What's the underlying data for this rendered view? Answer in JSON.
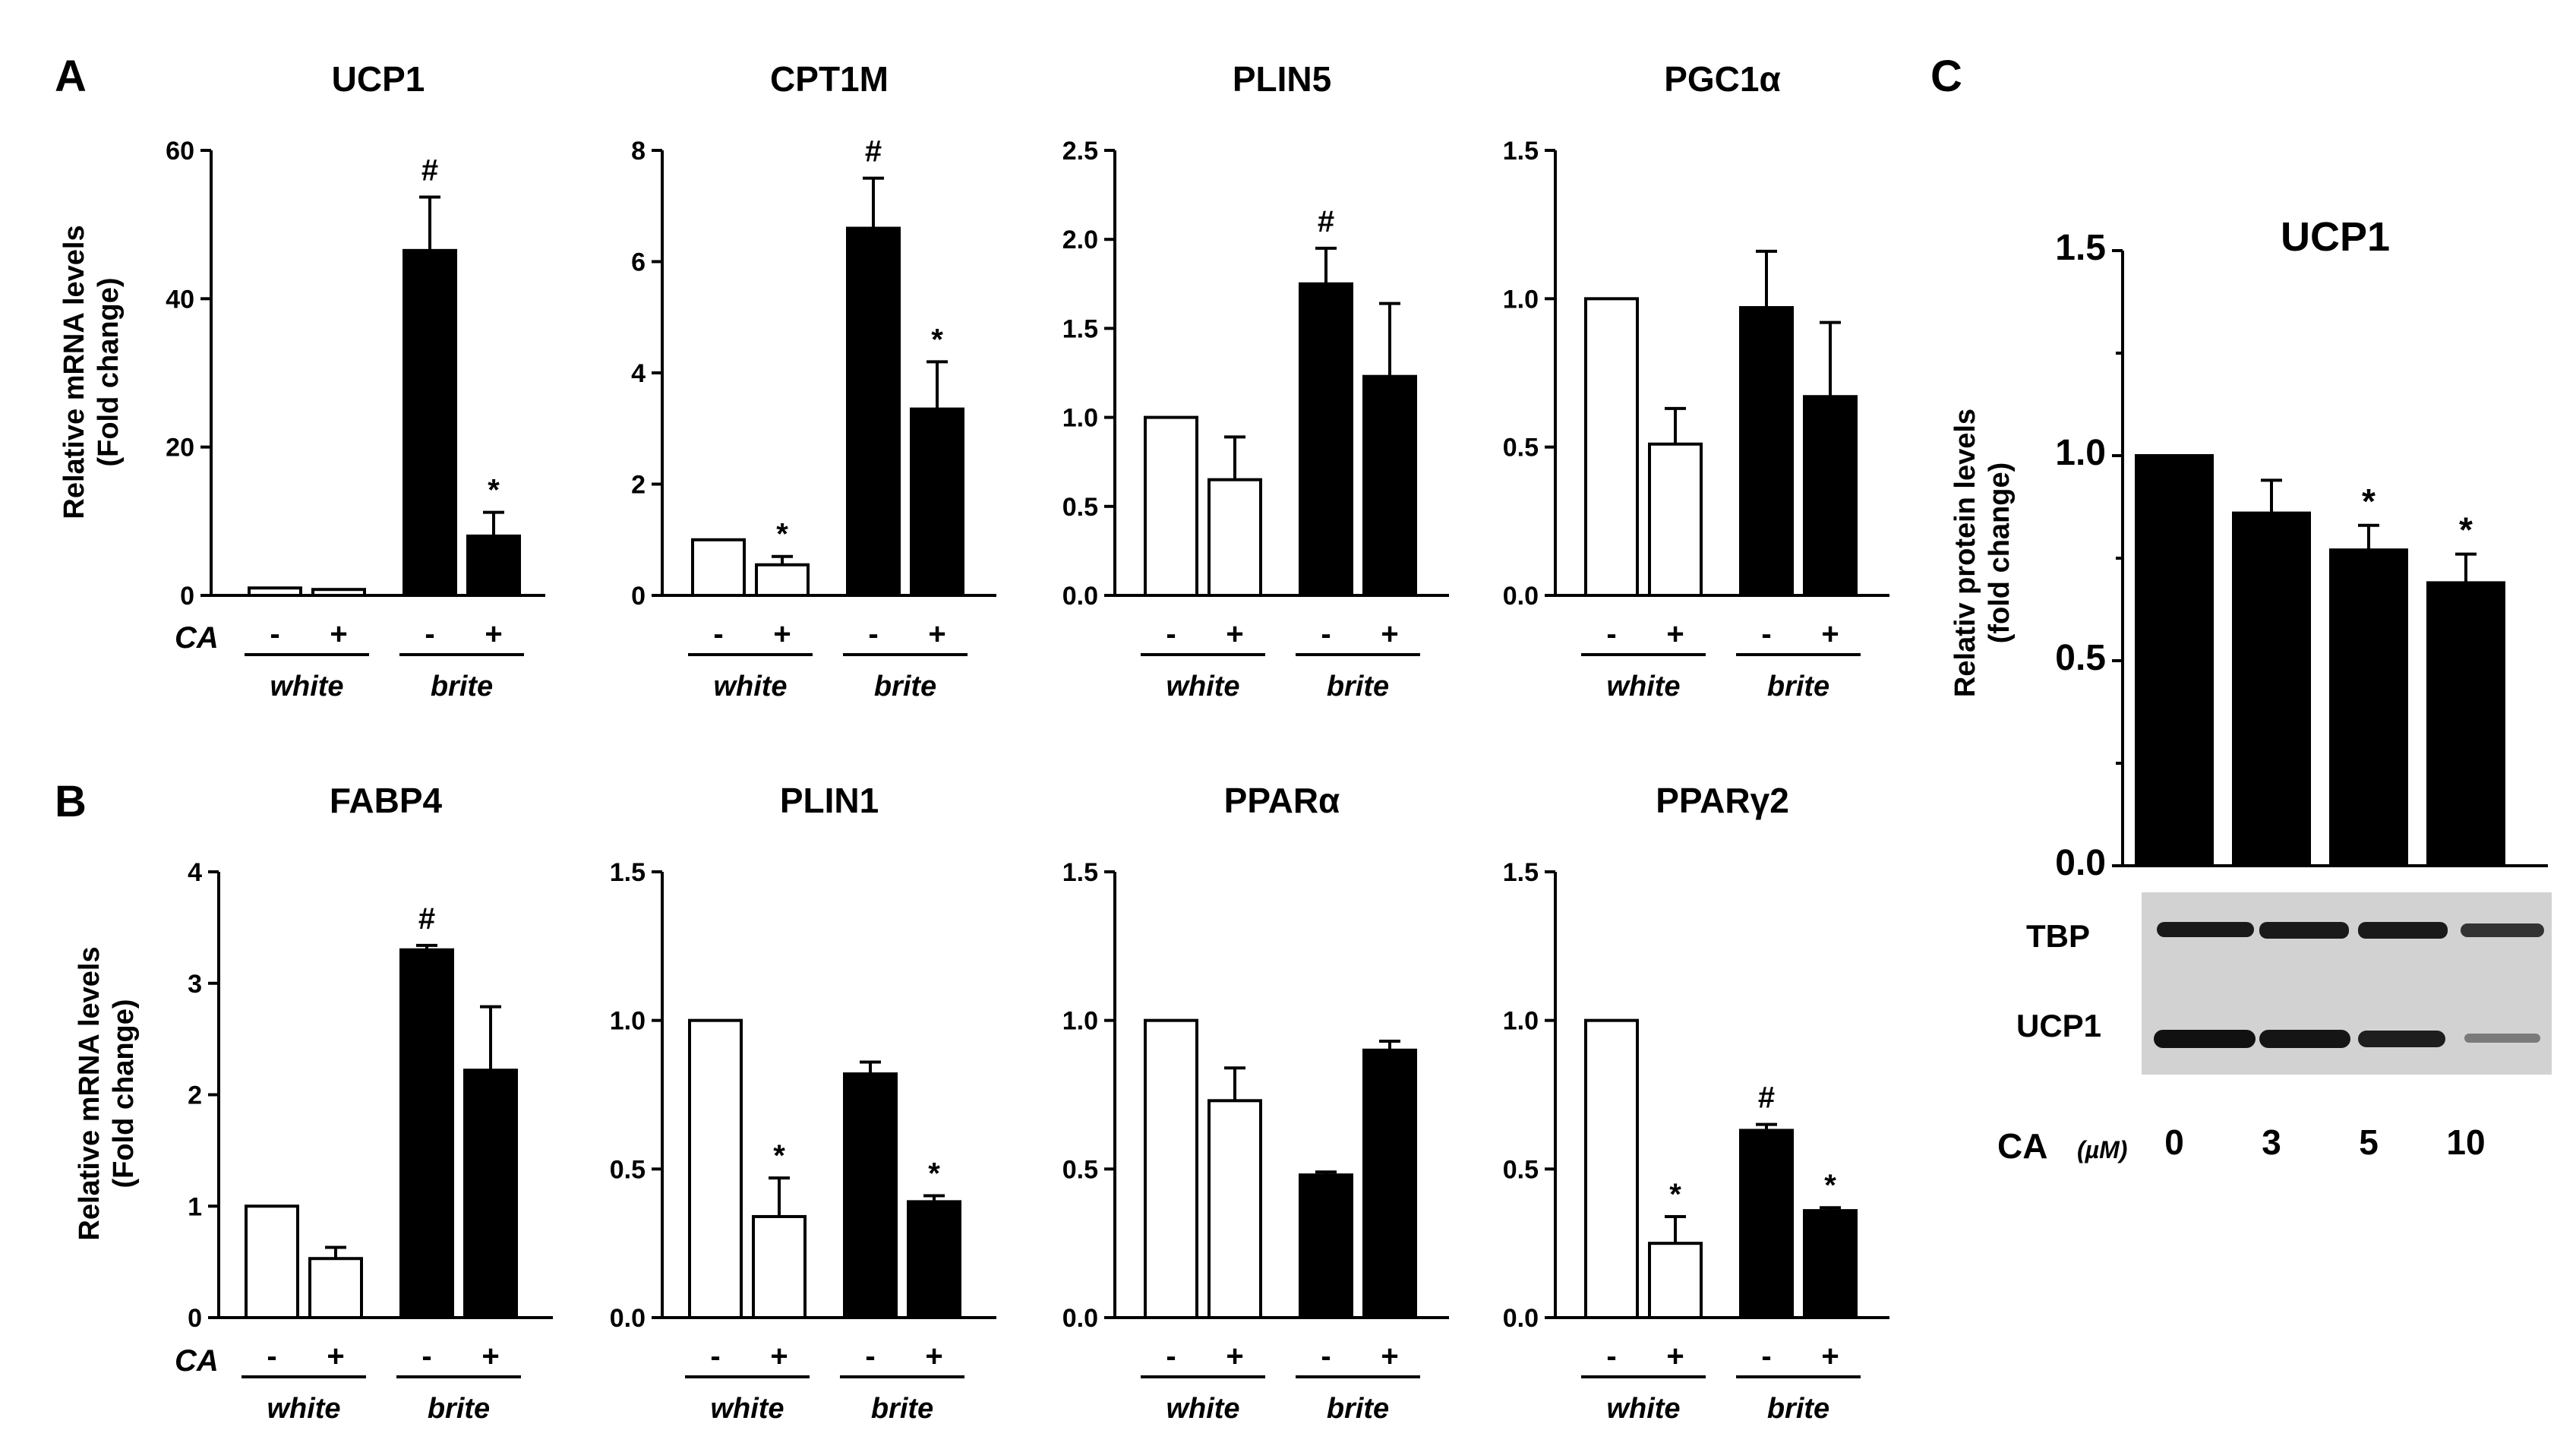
{
  "figure": {
    "panel_labels": [
      "A",
      "B",
      "C"
    ],
    "mrna_ylabel_line1": "Relative mRNA levels",
    "mrna_ylabel_line2": "(Fold change)",
    "protein_ylabel_line1": "Relativ protein levels",
    "protein_ylabel_line2": "(fold change)",
    "treatment_label": "CA",
    "group_labels": [
      "white",
      "brite"
    ],
    "treatment_signs": [
      "-",
      "+",
      "-",
      "+"
    ],
    "blot_labels": [
      "TBP",
      "UCP1"
    ],
    "dose_label": "CA",
    "dose_unit": "(µM)"
  },
  "chart_data": [
    {
      "id": "ucp1_mrna",
      "type": "bar",
      "panel": "A",
      "title": "UCP1",
      "categories": [
        "white -",
        "white +",
        "brite -",
        "brite +"
      ],
      "values": [
        1,
        0.8,
        46.5,
        8
      ],
      "errors": [
        0,
        0,
        7.2,
        3.2
      ],
      "colors": [
        "white",
        "white",
        "black",
        "black"
      ],
      "markers": [
        "",
        "",
        "#",
        "*"
      ],
      "ylim": [
        0,
        60
      ],
      "yticks": [
        "0",
        "20",
        "40",
        "60"
      ],
      "ylabel": "Relative mRNA levels (Fold change)",
      "xlabel": "CA"
    },
    {
      "id": "cpt1m_mrna",
      "type": "bar",
      "panel": "A",
      "title": "CPT1M",
      "categories": [
        "white -",
        "white +",
        "brite -",
        "brite +"
      ],
      "values": [
        1,
        0.55,
        6.6,
        3.35
      ],
      "errors": [
        0,
        0.15,
        0.9,
        0.85
      ],
      "colors": [
        "white",
        "white",
        "black",
        "black"
      ],
      "markers": [
        "",
        "*",
        "#",
        "*"
      ],
      "ylim": [
        0,
        8
      ],
      "yticks": [
        "0",
        "2",
        "4",
        "6",
        "8"
      ],
      "xlabel": "CA"
    },
    {
      "id": "plin5_mrna",
      "type": "bar",
      "panel": "A",
      "title": "PLIN5",
      "categories": [
        "white -",
        "white +",
        "brite -",
        "brite +"
      ],
      "values": [
        1,
        0.65,
        1.75,
        1.23
      ],
      "errors": [
        0,
        0.24,
        0.2,
        0.41
      ],
      "colors": [
        "white",
        "white",
        "black",
        "black"
      ],
      "markers": [
        "",
        "",
        "#",
        ""
      ],
      "ylim": [
        0,
        2.5
      ],
      "yticks": [
        "0.0",
        "0.5",
        "1.0",
        "1.5",
        "2.0",
        "2.5"
      ],
      "xlabel": "CA"
    },
    {
      "id": "pgc1a_mrna",
      "type": "bar",
      "panel": "A",
      "title": "PGC1α",
      "categories": [
        "white -",
        "white +",
        "brite -",
        "brite +"
      ],
      "values": [
        1,
        0.51,
        0.97,
        0.67
      ],
      "errors": [
        0,
        0.12,
        0.19,
        0.25
      ],
      "colors": [
        "white",
        "white",
        "black",
        "black"
      ],
      "markers": [
        "",
        "",
        "",
        ""
      ],
      "ylim": [
        0,
        1.5
      ],
      "yticks": [
        "0.0",
        "0.5",
        "1.0",
        "1.5"
      ],
      "xlabel": "CA"
    },
    {
      "id": "fabp4_mrna",
      "type": "bar",
      "panel": "B",
      "title": "FABP4",
      "categories": [
        "white -",
        "white +",
        "brite -",
        "brite +"
      ],
      "values": [
        1,
        0.53,
        3.3,
        2.22
      ],
      "errors": [
        0,
        0.1,
        0.04,
        0.57
      ],
      "colors": [
        "white",
        "white",
        "black",
        "black"
      ],
      "markers": [
        "",
        "",
        "#",
        ""
      ],
      "ylim": [
        0,
        4
      ],
      "yticks": [
        "0",
        "1",
        "2",
        "3",
        "4"
      ],
      "ylabel": "Relative mRNA levels (Fold change)",
      "xlabel": "CA"
    },
    {
      "id": "plin1_mrna",
      "type": "bar",
      "panel": "B",
      "title": "PLIN1",
      "categories": [
        "white -",
        "white +",
        "brite -",
        "brite +"
      ],
      "values": [
        1,
        0.34,
        0.82,
        0.39
      ],
      "errors": [
        0,
        0.13,
        0.04,
        0.02
      ],
      "colors": [
        "white",
        "white",
        "black",
        "black"
      ],
      "markers": [
        "",
        "*",
        "",
        "*"
      ],
      "ylim": [
        0,
        1.5
      ],
      "yticks": [
        "0.0",
        "0.5",
        "1.0",
        "1.5"
      ],
      "xlabel": "CA"
    },
    {
      "id": "ppara_mrna",
      "type": "bar",
      "panel": "B",
      "title": "PPARα",
      "categories": [
        "white -",
        "white +",
        "brite -",
        "brite +"
      ],
      "values": [
        1,
        0.73,
        0.48,
        0.9
      ],
      "errors": [
        0,
        0.11,
        0.01,
        0.03
      ],
      "colors": [
        "white",
        "white",
        "black",
        "black"
      ],
      "markers": [
        "",
        "",
        "",
        ""
      ],
      "ylim": [
        0,
        1.5
      ],
      "yticks": [
        "0.0",
        "0.5",
        "1.0",
        "1.5"
      ],
      "xlabel": "CA"
    },
    {
      "id": "pparg2_mrna",
      "type": "bar",
      "panel": "B",
      "title": "PPARγ2",
      "categories": [
        "white -",
        "white +",
        "brite -",
        "brite +"
      ],
      "values": [
        1,
        0.25,
        0.63,
        0.36
      ],
      "errors": [
        0,
        0.09,
        0.02,
        0.01
      ],
      "colors": [
        "white",
        "white",
        "black",
        "black"
      ],
      "markers": [
        "",
        "*",
        "#",
        "*"
      ],
      "ylim": [
        0,
        1.5
      ],
      "yticks": [
        "0.0",
        "0.5",
        "1.0",
        "1.5"
      ],
      "xlabel": "CA"
    },
    {
      "id": "ucp1_protein",
      "type": "bar",
      "panel": "C",
      "title": "UCP1",
      "categories": [
        "0",
        "3",
        "5",
        "10"
      ],
      "values": [
        1,
        0.86,
        0.77,
        0.69
      ],
      "errors": [
        0,
        0.08,
        0.06,
        0.07
      ],
      "colors": [
        "black",
        "black",
        "black",
        "black"
      ],
      "markers": [
        "",
        "",
        "*",
        "*"
      ],
      "ylim": [
        0,
        1.5
      ],
      "yticks": [
        "0.0",
        "0.5",
        "1.0",
        "1.5"
      ],
      "ylabel": "Relativ protein levels (fold change)",
      "xlabel": "CA (µM)"
    }
  ]
}
